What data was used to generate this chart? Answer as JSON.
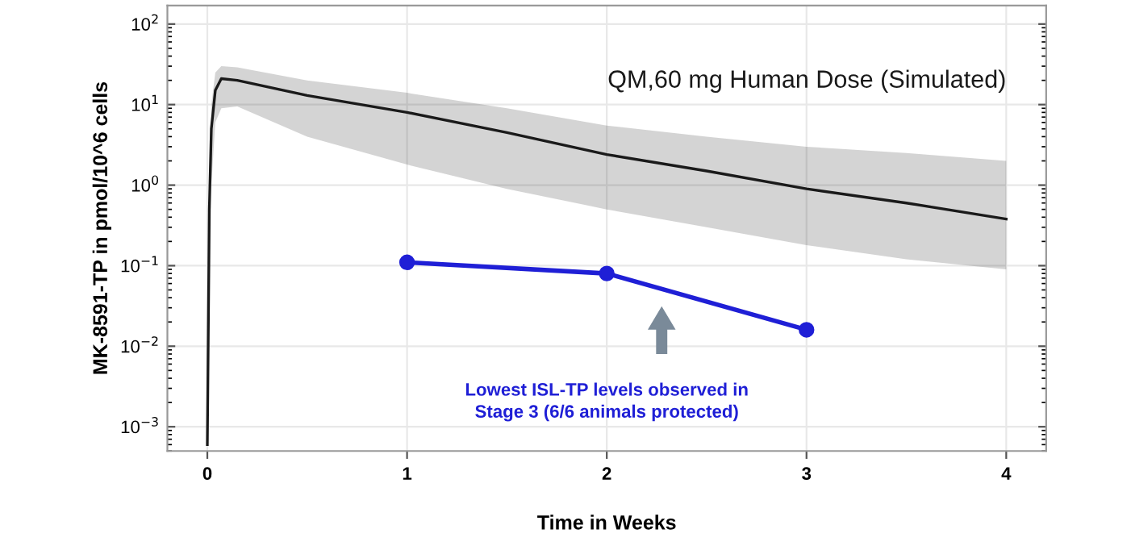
{
  "chart_data": {
    "type": "line",
    "xlabel": "Time in Weeks",
    "ylabel": "MK-8591-TP in pmol/10^6 cells",
    "log": "y",
    "grid": true,
    "xlim": [
      -0.2,
      4.2
    ],
    "xticks": [
      0,
      1,
      2,
      3,
      4
    ],
    "ylim": [
      0.0005,
      170
    ],
    "yticks": [
      {
        "value": 0.001,
        "label": "10$^{−3}$"
      },
      {
        "value": 0.01,
        "label": "10$^{−2}$"
      },
      {
        "value": 0.1,
        "label": "10$^{−1}$"
      },
      {
        "value": 1,
        "label": "10$^{0}$"
      },
      {
        "value": 10,
        "label": "10$^{1}$"
      },
      {
        "value": 100,
        "label": "10$^{2}$"
      }
    ],
    "series": [
      {
        "name": "QM,60 mg Human Dose (Simulated)",
        "color": "#1a1a1a",
        "marker": "none",
        "x": [
          0,
          0.01,
          0.02,
          0.04,
          0.07,
          0.15,
          0.5,
          1,
          1.5,
          2,
          2.5,
          3,
          3.5,
          4
        ],
        "values": [
          0.0006,
          0.5,
          5,
          15,
          21,
          20,
          13,
          8,
          4.5,
          2.4,
          1.5,
          0.9,
          0.6,
          0.38
        ],
        "lower": [
          null,
          null,
          1,
          6,
          9,
          9.5,
          4,
          1.8,
          0.9,
          0.5,
          0.3,
          0.18,
          0.12,
          0.09
        ],
        "upper": [
          null,
          null,
          10,
          25,
          30,
          29,
          20,
          14,
          9,
          5.5,
          4,
          3,
          2.5,
          2
        ]
      },
      {
        "color": "#1f1fd6",
        "marker": "circle",
        "x": [
          1,
          2,
          3
        ],
        "values": [
          0.11,
          0.08,
          0.016
        ]
      }
    ],
    "annotations": [
      "Lowest ISL-TP levels observed in\nStage 3 (6/6 animals protected)"
    ]
  }
}
